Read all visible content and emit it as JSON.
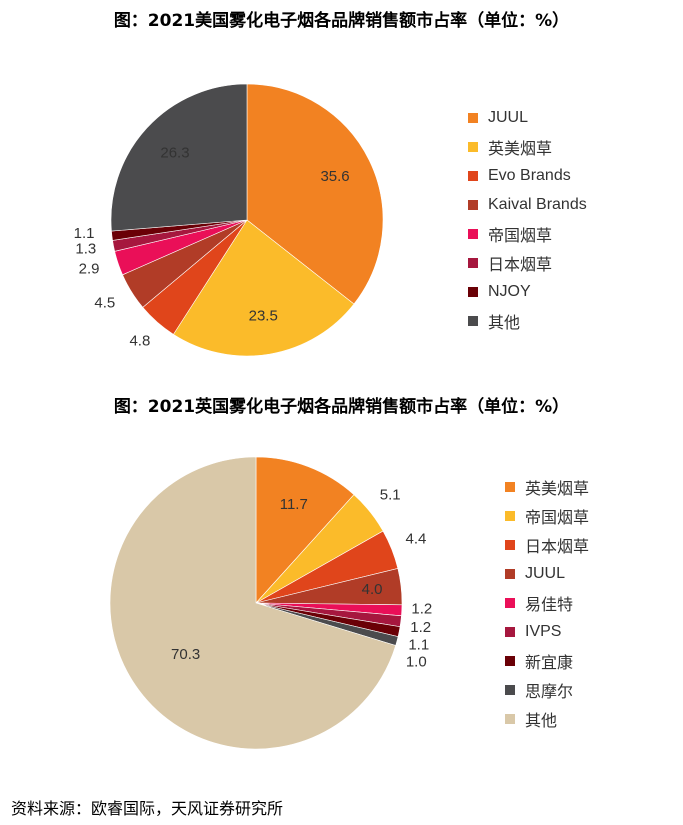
{
  "source_note": "资料来源：欧睿国际，天风证券研究所",
  "chart_data": [
    {
      "type": "pie",
      "title": "图：2021美国雾化电子烟各品牌销售额市占率（单位：%）",
      "legend_position": "right",
      "categories": [
        "JUUL",
        "英美烟草",
        "Evo Brands",
        "Kaival Brands",
        "帝国烟草",
        "日本烟草",
        "NJOY",
        "其他"
      ],
      "values": [
        35.6,
        23.5,
        4.8,
        4.5,
        2.9,
        1.3,
        1.1,
        26.3
      ],
      "data_labels": [
        "35.6",
        "23.5",
        "4.8",
        "4.5",
        "2.9",
        "1.3",
        "1.1",
        "26.3"
      ],
      "colors": [
        "#f28222",
        "#fbbb2a",
        "#e0451b",
        "#b13c27",
        "#ea0f58",
        "#a6173e",
        "#6a0006",
        "#4b4b4d"
      ]
    },
    {
      "type": "pie",
      "title": "图：2021英国雾化电子烟各品牌销售额市占率（单位：%）",
      "legend_position": "right",
      "categories": [
        "英美烟草",
        "帝国烟草",
        "日本烟草",
        "JUUL",
        "易佳特",
        "IVPS",
        "新宜康",
        "思摩尔",
        "其他"
      ],
      "values": [
        11.7,
        5.1,
        4.4,
        4.0,
        1.2,
        1.2,
        1.1,
        1.0,
        70.3
      ],
      "data_labels": [
        "11.7",
        "5.1",
        "4.4",
        "4.0",
        "1.2",
        "1.2",
        "1.1",
        "1.0",
        "70.3"
      ],
      "colors": [
        "#f28222",
        "#fbbb2a",
        "#e0451b",
        "#b13c27",
        "#ea0f58",
        "#a6173e",
        "#6a0006",
        "#4b4b4d",
        "#d9c8a8"
      ]
    }
  ]
}
